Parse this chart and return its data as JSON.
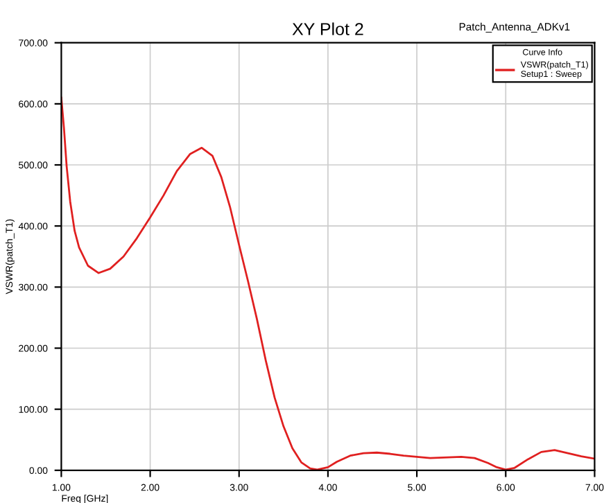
{
  "chart_data": {
    "type": "line",
    "title": "XY Plot 2",
    "xlabel": "Freq [GHz]",
    "ylabel": "VSWR(patch_T1)",
    "annotations": [
      "Patch_Antenna_ADKv1"
    ],
    "legend_title": "Curve Info",
    "legend": "top right",
    "grid": true,
    "marker": "none",
    "line_style": "solid",
    "xlim": [
      1.0,
      7.0
    ],
    "ylim": [
      0,
      700
    ],
    "xticks": [
      {
        "value": 1,
        "label": "1.00"
      },
      {
        "value": 2,
        "label": "2.00"
      },
      {
        "value": 3,
        "label": "3.00"
      },
      {
        "value": 4,
        "label": "4.00"
      },
      {
        "value": 5,
        "label": "5.00"
      },
      {
        "value": 6,
        "label": "6.00"
      },
      {
        "value": 7,
        "label": "7.00"
      }
    ],
    "yticks": [
      {
        "value": 0,
        "label": "0.00"
      },
      {
        "value": 100,
        "label": "100.00"
      },
      {
        "value": 200,
        "label": "200.00"
      },
      {
        "value": 300,
        "label": "300.00"
      },
      {
        "value": 400,
        "label": "400.00"
      },
      {
        "value": 500,
        "label": "500.00"
      },
      {
        "value": 600,
        "label": "600.00"
      },
      {
        "value": 700,
        "label": "700.00"
      }
    ],
    "series": [
      {
        "name": "VSWR(patch_T1)\nSetup1 : Sweep",
        "color": "#e02020",
        "x": [
          1.0,
          1.03,
          1.06,
          1.1,
          1.15,
          1.2,
          1.3,
          1.42,
          1.55,
          1.7,
          1.85,
          2.0,
          2.15,
          2.3,
          2.45,
          2.58,
          2.7,
          2.8,
          2.9,
          3.0,
          3.1,
          3.2,
          3.3,
          3.4,
          3.5,
          3.6,
          3.7,
          3.8,
          3.88,
          4.0,
          4.1,
          4.25,
          4.4,
          4.55,
          4.7,
          4.85,
          5.0,
          5.15,
          5.3,
          5.5,
          5.65,
          5.8,
          5.9,
          6.0,
          6.1,
          6.25,
          6.4,
          6.55,
          6.7,
          6.85,
          7.0
        ],
        "values": [
          610,
          560,
          498,
          440,
          392,
          365,
          335,
          323,
          330,
          350,
          380,
          414,
          450,
          490,
          518,
          528,
          515,
          480,
          430,
          369,
          310,
          248,
          180,
          119,
          72,
          36,
          13,
          3,
          1,
          5,
          14,
          24,
          28,
          29,
          27,
          24,
          22,
          20,
          21,
          22,
          20,
          12,
          5,
          1,
          4,
          18,
          30,
          33,
          28,
          23,
          19
        ]
      }
    ]
  }
}
